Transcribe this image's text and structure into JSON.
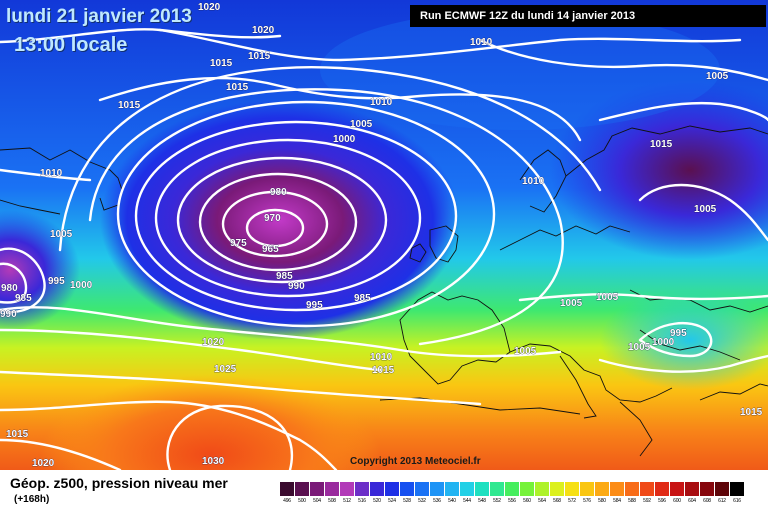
{
  "header": {
    "date": "lundi 21 janvier 2013",
    "time": "13:00 locale",
    "run": "Run ECMWF 12Z du lundi 14 janvier 2013"
  },
  "map": {
    "copyright": "Copyright 2013 Meteociel.fr",
    "isobar_labels": [
      "1020",
      "1020",
      "1015",
      "1015",
      "1015",
      "1010",
      "1005",
      "1015",
      "1010",
      "1005",
      "1000",
      "1010",
      "1010",
      "1005",
      "1015",
      "1005",
      "980",
      "970",
      "975",
      "965",
      "985",
      "990",
      "995",
      "985",
      "980",
      "985",
      "995",
      "1000",
      "990",
      "1020",
      "1025",
      "1005",
      "1005",
      "1005",
      "995",
      "1000",
      "1005",
      "1010",
      "1015",
      "1015",
      "1020",
      "1030",
      "1015"
    ]
  },
  "legend": {
    "title": "Géop. z500, pression niveau mer",
    "subtitle": "(+168h)",
    "scale": [
      {
        "value": "496",
        "color": "#3a0a2e"
      },
      {
        "value": "500",
        "color": "#5a1050"
      },
      {
        "value": "504",
        "color": "#7a1a78"
      },
      {
        "value": "508",
        "color": "#9a2a9e"
      },
      {
        "value": "512",
        "color": "#b23ab8"
      },
      {
        "value": "516",
        "color": "#6c2ec8"
      },
      {
        "value": "520",
        "color": "#3a28d8"
      },
      {
        "value": "524",
        "color": "#1e30e6"
      },
      {
        "value": "528",
        "color": "#1650f0"
      },
      {
        "value": "532",
        "color": "#1a72f4"
      },
      {
        "value": "536",
        "color": "#1e94f6"
      },
      {
        "value": "540",
        "color": "#22b4f2"
      },
      {
        "value": "544",
        "color": "#22d0e6"
      },
      {
        "value": "548",
        "color": "#1ee0c0"
      },
      {
        "value": "552",
        "color": "#30e890"
      },
      {
        "value": "556",
        "color": "#46ee5e"
      },
      {
        "value": "560",
        "color": "#76f23a"
      },
      {
        "value": "564",
        "color": "#aef22a"
      },
      {
        "value": "568",
        "color": "#dcf01e"
      },
      {
        "value": "572",
        "color": "#f6e014"
      },
      {
        "value": "576",
        "color": "#fac612"
      },
      {
        "value": "580",
        "color": "#fcaa14"
      },
      {
        "value": "584",
        "color": "#fc8c16"
      },
      {
        "value": "588",
        "color": "#f86c18"
      },
      {
        "value": "592",
        "color": "#f04a18"
      },
      {
        "value": "596",
        "color": "#e02a16"
      },
      {
        "value": "600",
        "color": "#c81414"
      },
      {
        "value": "604",
        "color": "#a80c10"
      },
      {
        "value": "608",
        "color": "#86060c"
      },
      {
        "value": "612",
        "color": "#5e0408"
      },
      {
        "value": "616",
        "color": "#000000"
      }
    ]
  }
}
